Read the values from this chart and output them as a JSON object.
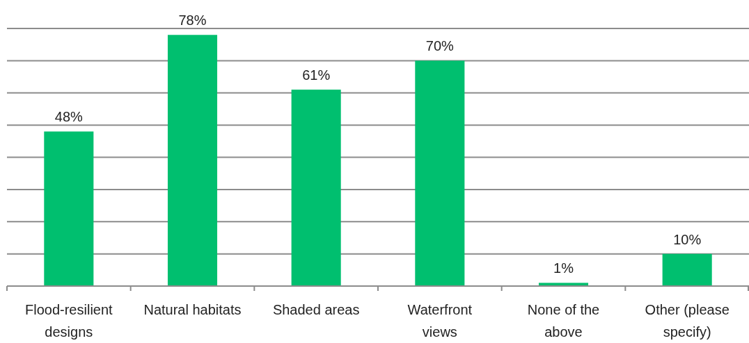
{
  "chart_data": {
    "type": "bar",
    "categories": [
      "Flood-resilient designs",
      "Natural habitats",
      "Shaded areas",
      "Waterfront views",
      "None of the above",
      "Other (please specify)"
    ],
    "values": [
      48,
      78,
      61,
      70,
      1,
      10
    ],
    "value_labels": [
      "48%",
      "78%",
      "61%",
      "70%",
      "1%",
      "10%"
    ],
    "color": "#00bf6f",
    "ylim": [
      0,
      80
    ],
    "yticks": [
      {
        "value": 0,
        "label": null
      },
      {
        "value": 10,
        "label": null
      },
      {
        "value": 20,
        "label": null
      },
      {
        "value": 30,
        "label": null
      },
      {
        "value": 40,
        "label": null
      },
      {
        "value": 50,
        "label": null
      },
      {
        "value": 60,
        "label": null
      },
      {
        "value": 70,
        "label": null
      },
      {
        "value": 80,
        "label": null
      }
    ],
    "grid": "y",
    "tick_labels": "x"
  }
}
